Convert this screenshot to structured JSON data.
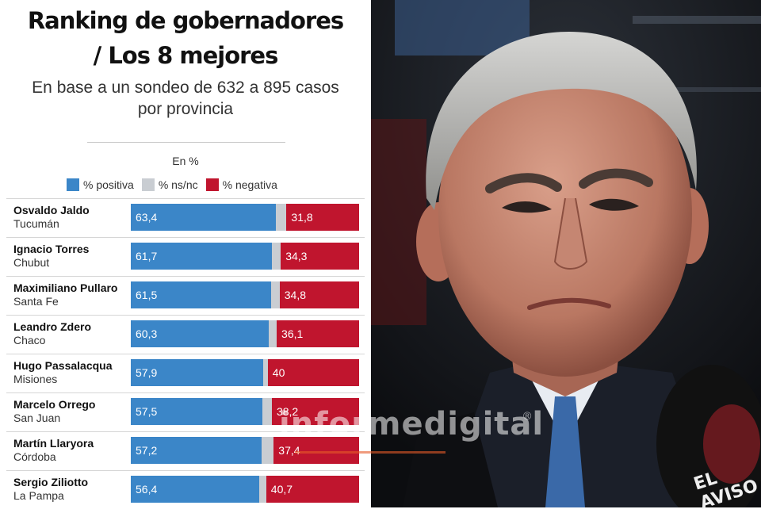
{
  "title_line1": "Ranking de gobernadores",
  "title_line2": "/ Los 8 mejores",
  "subtitle_line1": "En base a un sondeo de 632 a 895 casos",
  "subtitle_line2": "por provincia",
  "unit_label": "En %",
  "legend": [
    {
      "label": "% positiva",
      "color": "#3b86c8"
    },
    {
      "label": "% ns/nc",
      "color": "#c9cdd2"
    },
    {
      "label": "% negativa",
      "color": "#c0152e"
    }
  ],
  "watermark": "informedigital",
  "watermark_mark": "®",
  "mic_brand": "EL AVISO",
  "chart_data": {
    "type": "bar",
    "stacked": true,
    "orientation": "horizontal",
    "xlim": [
      0,
      100
    ],
    "categories": [
      "Osvaldo Jaldo",
      "Ignacio Torres",
      "Maximiliano Pullaro",
      "Leandro Zdero",
      "Hugo Passalacqua",
      "Marcelo Orrego",
      "Martín Llaryora",
      "Sergio Ziliotto"
    ],
    "provinces": [
      "Tucumán",
      "Chubut",
      "Santa Fe",
      "Chaco",
      "Misiones",
      "San Juan",
      "Córdoba",
      "La Pampa"
    ],
    "series": [
      {
        "name": "% positiva",
        "values": [
          63.4,
          61.7,
          61.5,
          60.3,
          57.9,
          57.5,
          57.2,
          56.4
        ],
        "labels": [
          "63,4",
          "61,7",
          "61,5",
          "60,3",
          "57,9",
          "57,5",
          "57,2",
          "56,4"
        ]
      },
      {
        "name": "% ns/nc",
        "values": [
          4.8,
          4.0,
          3.7,
          3.6,
          2.1,
          4.3,
          5.4,
          2.9
        ]
      },
      {
        "name": "% negativa",
        "values": [
          31.8,
          34.3,
          34.8,
          36.1,
          40,
          38.2,
          37.4,
          40.7
        ],
        "labels": [
          "31,8",
          "34,3",
          "34,8",
          "36,1",
          "40",
          "38,2",
          "37,4",
          "40,7"
        ]
      }
    ]
  }
}
